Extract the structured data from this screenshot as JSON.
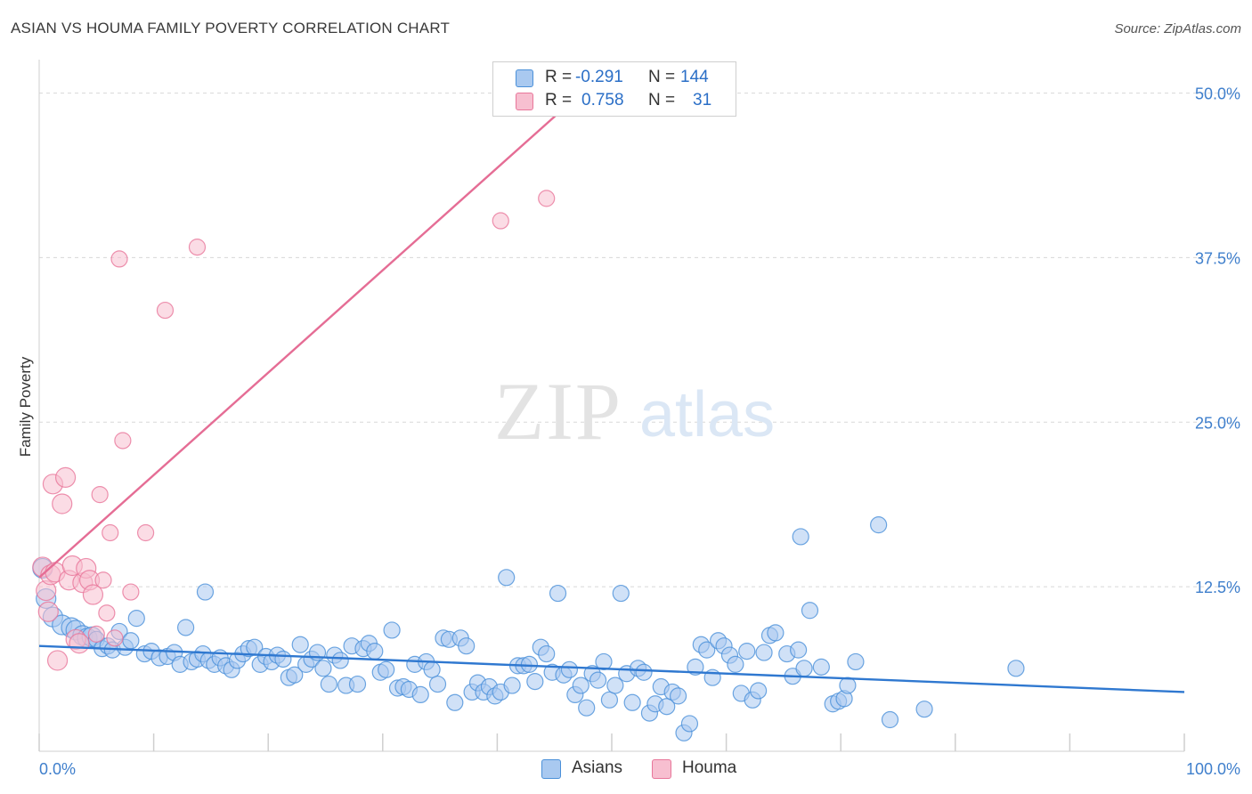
{
  "title": "ASIAN VS HOUMA FAMILY POVERTY CORRELATION CHART",
  "source": "Source: ZipAtlas.com",
  "watermark": {
    "zip": "ZIP",
    "atlas": "atlas"
  },
  "colors": {
    "asian": "#4a90d9",
    "asian_fill": "#a9c9f0",
    "houma": "#e8769a",
    "houma_fill": "#f7bfd0",
    "axis_text": "#3f7fcc"
  },
  "legend": {
    "rows": [
      {
        "r_label": "R =",
        "r_value": "-0.291",
        "n_label": "N =",
        "n_value": "144"
      },
      {
        "r_label": "R =",
        "r_value": "0.758",
        "n_label": "N =",
        "n_value": "31"
      }
    ],
    "bottom": [
      "Asians",
      "Houma"
    ]
  },
  "chart_data": {
    "type": "scatter",
    "title": "ASIAN VS HOUMA FAMILY POVERTY CORRELATION CHART",
    "xlabel": "",
    "ylabel": "Family Poverty",
    "xlim": [
      0,
      100
    ],
    "ylim": [
      0,
      52
    ],
    "x_tick_labels": [
      "0.0%",
      "100.0%"
    ],
    "y_ticks": [
      12.5,
      25.0,
      37.5,
      50.0
    ],
    "y_tick_labels": [
      "12.5%",
      "25.0%",
      "37.5%",
      "50.0%"
    ],
    "series": [
      {
        "name": "Asians",
        "r": -0.291,
        "n": 144,
        "trend": {
          "x": [
            0,
            100
          ],
          "y": [
            8.0,
            4.5
          ]
        },
        "points": [
          [
            0.3,
            13.9
          ],
          [
            0.6,
            11.6
          ],
          [
            1.2,
            10.2
          ],
          [
            2.0,
            9.6
          ],
          [
            2.8,
            9.4
          ],
          [
            3.2,
            9.2
          ],
          [
            3.8,
            8.8
          ],
          [
            4.2,
            8.6
          ],
          [
            4.6,
            8.7
          ],
          [
            5.0,
            8.5
          ],
          [
            5.5,
            7.8
          ],
          [
            6.0,
            8.0
          ],
          [
            6.4,
            7.7
          ],
          [
            7.0,
            9.1
          ],
          [
            7.5,
            7.9
          ],
          [
            8.0,
            8.4
          ],
          [
            8.5,
            10.1
          ],
          [
            9.2,
            7.4
          ],
          [
            9.8,
            7.6
          ],
          [
            10.5,
            7.1
          ],
          [
            11.2,
            7.2
          ],
          [
            11.8,
            7.5
          ],
          [
            12.3,
            6.6
          ],
          [
            12.8,
            9.4
          ],
          [
            13.3,
            6.8
          ],
          [
            13.8,
            7.0
          ],
          [
            14.3,
            7.4
          ],
          [
            14.8,
            6.9
          ],
          [
            14.5,
            12.1
          ],
          [
            15.3,
            6.6
          ],
          [
            15.8,
            7.1
          ],
          [
            16.3,
            6.5
          ],
          [
            16.8,
            6.2
          ],
          [
            17.3,
            6.9
          ],
          [
            17.8,
            7.4
          ],
          [
            18.3,
            7.8
          ],
          [
            18.8,
            7.9
          ],
          [
            19.3,
            6.6
          ],
          [
            19.8,
            7.2
          ],
          [
            20.3,
            6.8
          ],
          [
            20.8,
            7.3
          ],
          [
            21.3,
            7.0
          ],
          [
            21.8,
            5.6
          ],
          [
            22.3,
            5.8
          ],
          [
            22.8,
            8.1
          ],
          [
            23.3,
            6.6
          ],
          [
            23.8,
            7.0
          ],
          [
            24.3,
            7.5
          ],
          [
            24.8,
            6.3
          ],
          [
            25.3,
            5.1
          ],
          [
            25.8,
            7.3
          ],
          [
            26.3,
            6.9
          ],
          [
            26.8,
            5.0
          ],
          [
            27.3,
            8.0
          ],
          [
            27.8,
            5.1
          ],
          [
            28.3,
            7.8
          ],
          [
            28.8,
            8.2
          ],
          [
            29.3,
            7.6
          ],
          [
            29.8,
            6.0
          ],
          [
            30.3,
            6.2
          ],
          [
            30.8,
            9.2
          ],
          [
            31.3,
            4.8
          ],
          [
            31.8,
            4.9
          ],
          [
            32.3,
            4.7
          ],
          [
            32.8,
            6.6
          ],
          [
            33.3,
            4.3
          ],
          [
            33.8,
            6.8
          ],
          [
            34.3,
            6.2
          ],
          [
            34.8,
            5.1
          ],
          [
            35.3,
            8.6
          ],
          [
            35.8,
            8.5
          ],
          [
            36.3,
            3.7
          ],
          [
            36.8,
            8.6
          ],
          [
            37.3,
            8.0
          ],
          [
            37.8,
            4.5
          ],
          [
            38.3,
            5.2
          ],
          [
            38.8,
            4.5
          ],
          [
            39.3,
            4.9
          ],
          [
            39.8,
            4.2
          ],
          [
            40.3,
            4.5
          ],
          [
            40.8,
            13.2
          ],
          [
            41.3,
            5.0
          ],
          [
            41.8,
            6.5
          ],
          [
            42.3,
            6.5
          ],
          [
            42.8,
            6.6
          ],
          [
            43.3,
            5.3
          ],
          [
            43.8,
            7.9
          ],
          [
            44.3,
            7.4
          ],
          [
            44.8,
            6.0
          ],
          [
            45.3,
            12.0
          ],
          [
            45.8,
            5.8
          ],
          [
            46.3,
            6.2
          ],
          [
            46.8,
            4.3
          ],
          [
            47.3,
            5.0
          ],
          [
            47.8,
            3.3
          ],
          [
            48.3,
            5.9
          ],
          [
            48.8,
            5.4
          ],
          [
            49.3,
            6.8
          ],
          [
            49.8,
            3.9
          ],
          [
            50.3,
            5.0
          ],
          [
            50.8,
            12.0
          ],
          [
            51.3,
            5.9
          ],
          [
            51.8,
            3.7
          ],
          [
            52.3,
            6.3
          ],
          [
            52.8,
            6.0
          ],
          [
            53.3,
            2.9
          ],
          [
            53.8,
            3.6
          ],
          [
            54.3,
            4.9
          ],
          [
            54.8,
            3.4
          ],
          [
            55.3,
            4.5
          ],
          [
            55.8,
            4.2
          ],
          [
            56.3,
            1.4
          ],
          [
            56.8,
            2.1
          ],
          [
            57.3,
            6.4
          ],
          [
            57.8,
            8.1
          ],
          [
            58.3,
            7.7
          ],
          [
            58.8,
            5.6
          ],
          [
            59.3,
            8.4
          ],
          [
            59.8,
            8.0
          ],
          [
            60.3,
            7.3
          ],
          [
            60.8,
            6.6
          ],
          [
            61.3,
            4.4
          ],
          [
            61.8,
            7.6
          ],
          [
            62.3,
            3.9
          ],
          [
            62.8,
            4.6
          ],
          [
            63.3,
            7.5
          ],
          [
            63.8,
            8.8
          ],
          [
            64.3,
            9.0
          ],
          [
            65.3,
            7.4
          ],
          [
            65.8,
            5.7
          ],
          [
            66.3,
            7.7
          ],
          [
            66.8,
            6.3
          ],
          [
            66.5,
            16.3
          ],
          [
            67.3,
            10.7
          ],
          [
            68.3,
            6.4
          ],
          [
            69.3,
            3.6
          ],
          [
            69.8,
            3.8
          ],
          [
            70.3,
            4.0
          ],
          [
            70.6,
            5.0
          ],
          [
            71.3,
            6.8
          ],
          [
            73.3,
            17.2
          ],
          [
            74.3,
            2.4
          ],
          [
            77.3,
            3.2
          ],
          [
            85.3,
            6.3
          ]
        ]
      },
      {
        "name": "Houma",
        "r": 0.758,
        "n": 31,
        "trend": {
          "x": [
            0,
            47.3
          ],
          "y": [
            13.2,
            50.0
          ]
        },
        "points": [
          [
            0.3,
            14.0
          ],
          [
            0.6,
            12.2
          ],
          [
            0.8,
            10.6
          ],
          [
            1.0,
            13.4
          ],
          [
            1.2,
            20.3
          ],
          [
            1.4,
            13.6
          ],
          [
            1.6,
            6.9
          ],
          [
            2.0,
            18.8
          ],
          [
            2.3,
            20.8
          ],
          [
            2.6,
            13.0
          ],
          [
            2.9,
            14.1
          ],
          [
            3.2,
            8.5
          ],
          [
            3.5,
            8.2
          ],
          [
            3.8,
            12.8
          ],
          [
            4.1,
            13.9
          ],
          [
            4.4,
            13.0
          ],
          [
            4.7,
            11.9
          ],
          [
            5.0,
            8.9
          ],
          [
            5.3,
            19.5
          ],
          [
            5.6,
            13.0
          ],
          [
            5.9,
            10.5
          ],
          [
            6.2,
            16.6
          ],
          [
            7.0,
            37.4
          ],
          [
            7.3,
            23.6
          ],
          [
            8.0,
            12.1
          ],
          [
            9.3,
            16.6
          ],
          [
            11.0,
            33.5
          ],
          [
            13.8,
            38.3
          ],
          [
            40.3,
            40.3
          ],
          [
            44.3,
            42.0
          ],
          [
            6.6,
            8.6
          ]
        ]
      }
    ]
  }
}
